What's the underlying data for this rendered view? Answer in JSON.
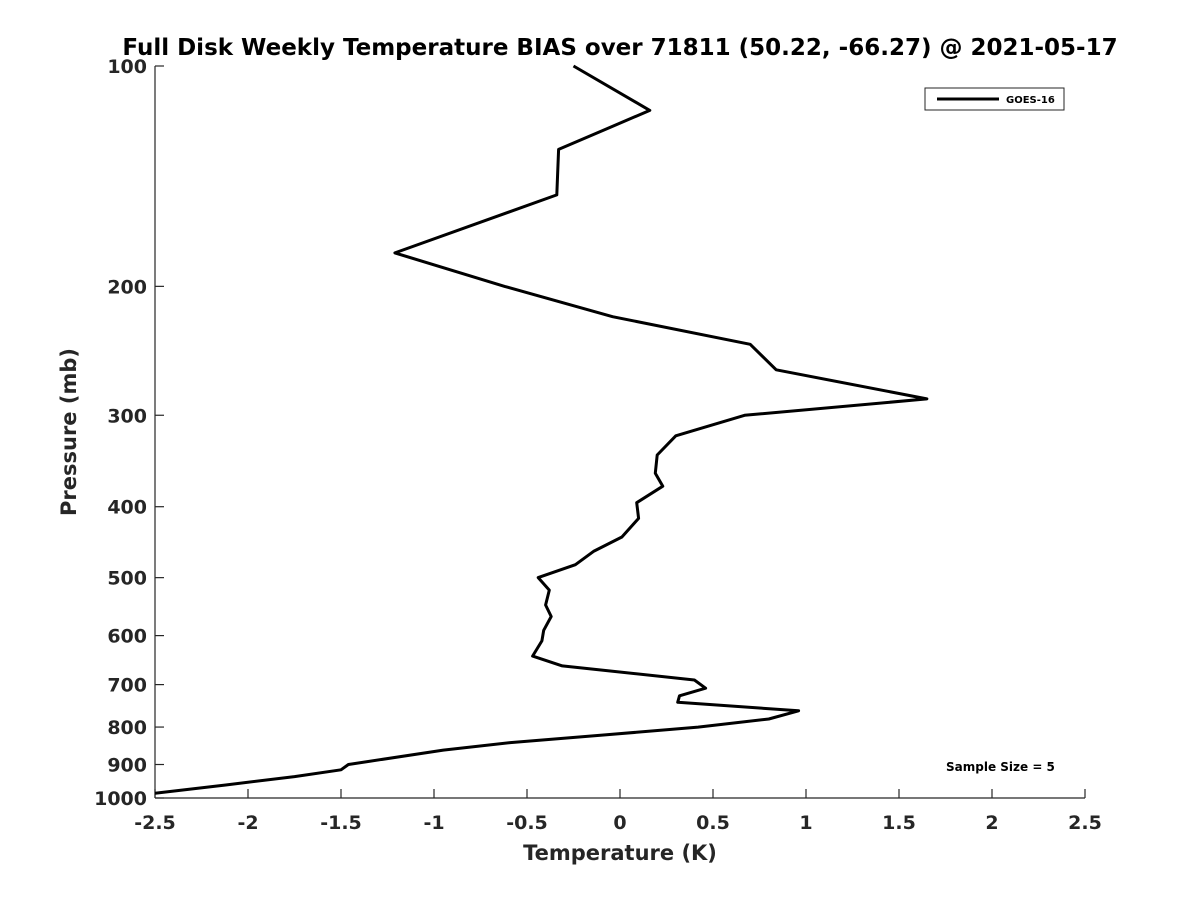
{
  "chart_data": {
    "type": "line",
    "title": "Full Disk Weekly Temperature BIAS over 71811 (50.22, -66.27) @ 2021-05-17",
    "xlabel": "Temperature (K)",
    "ylabel": "Pressure (mb)",
    "xlim": [
      -2.5,
      2.5
    ],
    "ylim": [
      100,
      1000
    ],
    "yscale": "log",
    "y_reversed": true,
    "grid": false,
    "x_ticks": [
      -2.5,
      -2,
      -1.5,
      -1,
      -0.5,
      0,
      0.5,
      1,
      1.5,
      2,
      2.5
    ],
    "x_tick_labels": [
      "-2.5",
      "-2",
      "-1.5",
      "-1",
      "-0.5",
      "0",
      "0.5",
      "1",
      "1.5",
      "2",
      "2.5"
    ],
    "y_ticks": [
      100,
      200,
      300,
      400,
      500,
      600,
      700,
      800,
      900,
      1000
    ],
    "y_tick_labels": [
      "100",
      "200",
      "300",
      "400",
      "500",
      "600",
      "700",
      "800",
      "900",
      "1000"
    ],
    "legend_position": "top-right",
    "series": [
      {
        "name": "GOES-16",
        "color": "#000000",
        "x": [
          -0.25,
          0.16,
          -0.33,
          -0.34,
          -1.21,
          -0.62,
          -0.04,
          0.7,
          0.84,
          1.65,
          0.67,
          0.3,
          0.2,
          0.19,
          0.23,
          0.09,
          0.1,
          0.01,
          -0.14,
          -0.24,
          -0.44,
          -0.38,
          -0.4,
          -0.37,
          -0.41,
          -0.42,
          -0.47,
          -0.31,
          0.4,
          0.46,
          0.32,
          0.31,
          0.96,
          0.8,
          0.42,
          -0.08,
          -0.59,
          -0.95,
          -1.46,
          -1.5,
          -1.75,
          -2.12,
          -2.5
        ],
        "y": [
          100,
          115,
          130,
          150,
          180,
          200,
          220,
          240,
          260,
          285,
          300,
          320,
          340,
          360,
          375,
          395,
          415,
          440,
          460,
          480,
          500,
          520,
          545,
          565,
          590,
          610,
          640,
          660,
          690,
          708,
          725,
          740,
          760,
          780,
          800,
          820,
          840,
          860,
          900,
          915,
          935,
          960,
          985
        ]
      }
    ],
    "annotation": "Sample Size = 5"
  }
}
